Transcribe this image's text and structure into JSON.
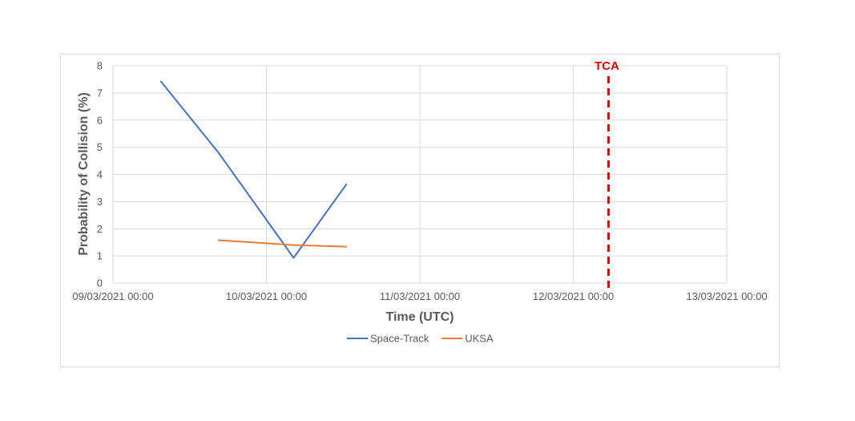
{
  "chart_data": {
    "type": "line",
    "xlabel": "Time (UTC)",
    "ylabel": "Probability of Collision (%)",
    "ylim": [
      0,
      8
    ],
    "yticks": [
      0,
      1,
      2,
      3,
      4,
      5,
      6,
      7,
      8
    ],
    "xlim": [
      "09/03/2021 00:00",
      "13/03/2021 00:00"
    ],
    "xticks": [
      "09/03/2021 00:00",
      "10/03/2021 00:00",
      "11/03/2021 00:00",
      "12/03/2021 00:00",
      "13/03/2021 00:00"
    ],
    "grid": true,
    "legend_position": "bottom",
    "series": [
      {
        "name": "Space-Track",
        "color": "#4472c4",
        "points": [
          {
            "x": "09/03/2021 07:30",
            "y": 7.42
          },
          {
            "x": "09/03/2021 16:30",
            "y": 4.8
          },
          {
            "x": "10/03/2021 04:15",
            "y": 0.93
          },
          {
            "x": "10/03/2021 12:30",
            "y": 3.63
          }
        ]
      },
      {
        "name": "UKSA",
        "color": "#ed7d31",
        "points": [
          {
            "x": "09/03/2021 16:30",
            "y": 1.58
          },
          {
            "x": "10/03/2021 04:15",
            "y": 1.4
          },
          {
            "x": "10/03/2021 12:30",
            "y": 1.34
          }
        ]
      }
    ],
    "annotations": [
      {
        "label": "TCA",
        "x": "12/03/2021 05:30",
        "color": "#e00000",
        "style": "dashed-vertical-line"
      }
    ]
  }
}
